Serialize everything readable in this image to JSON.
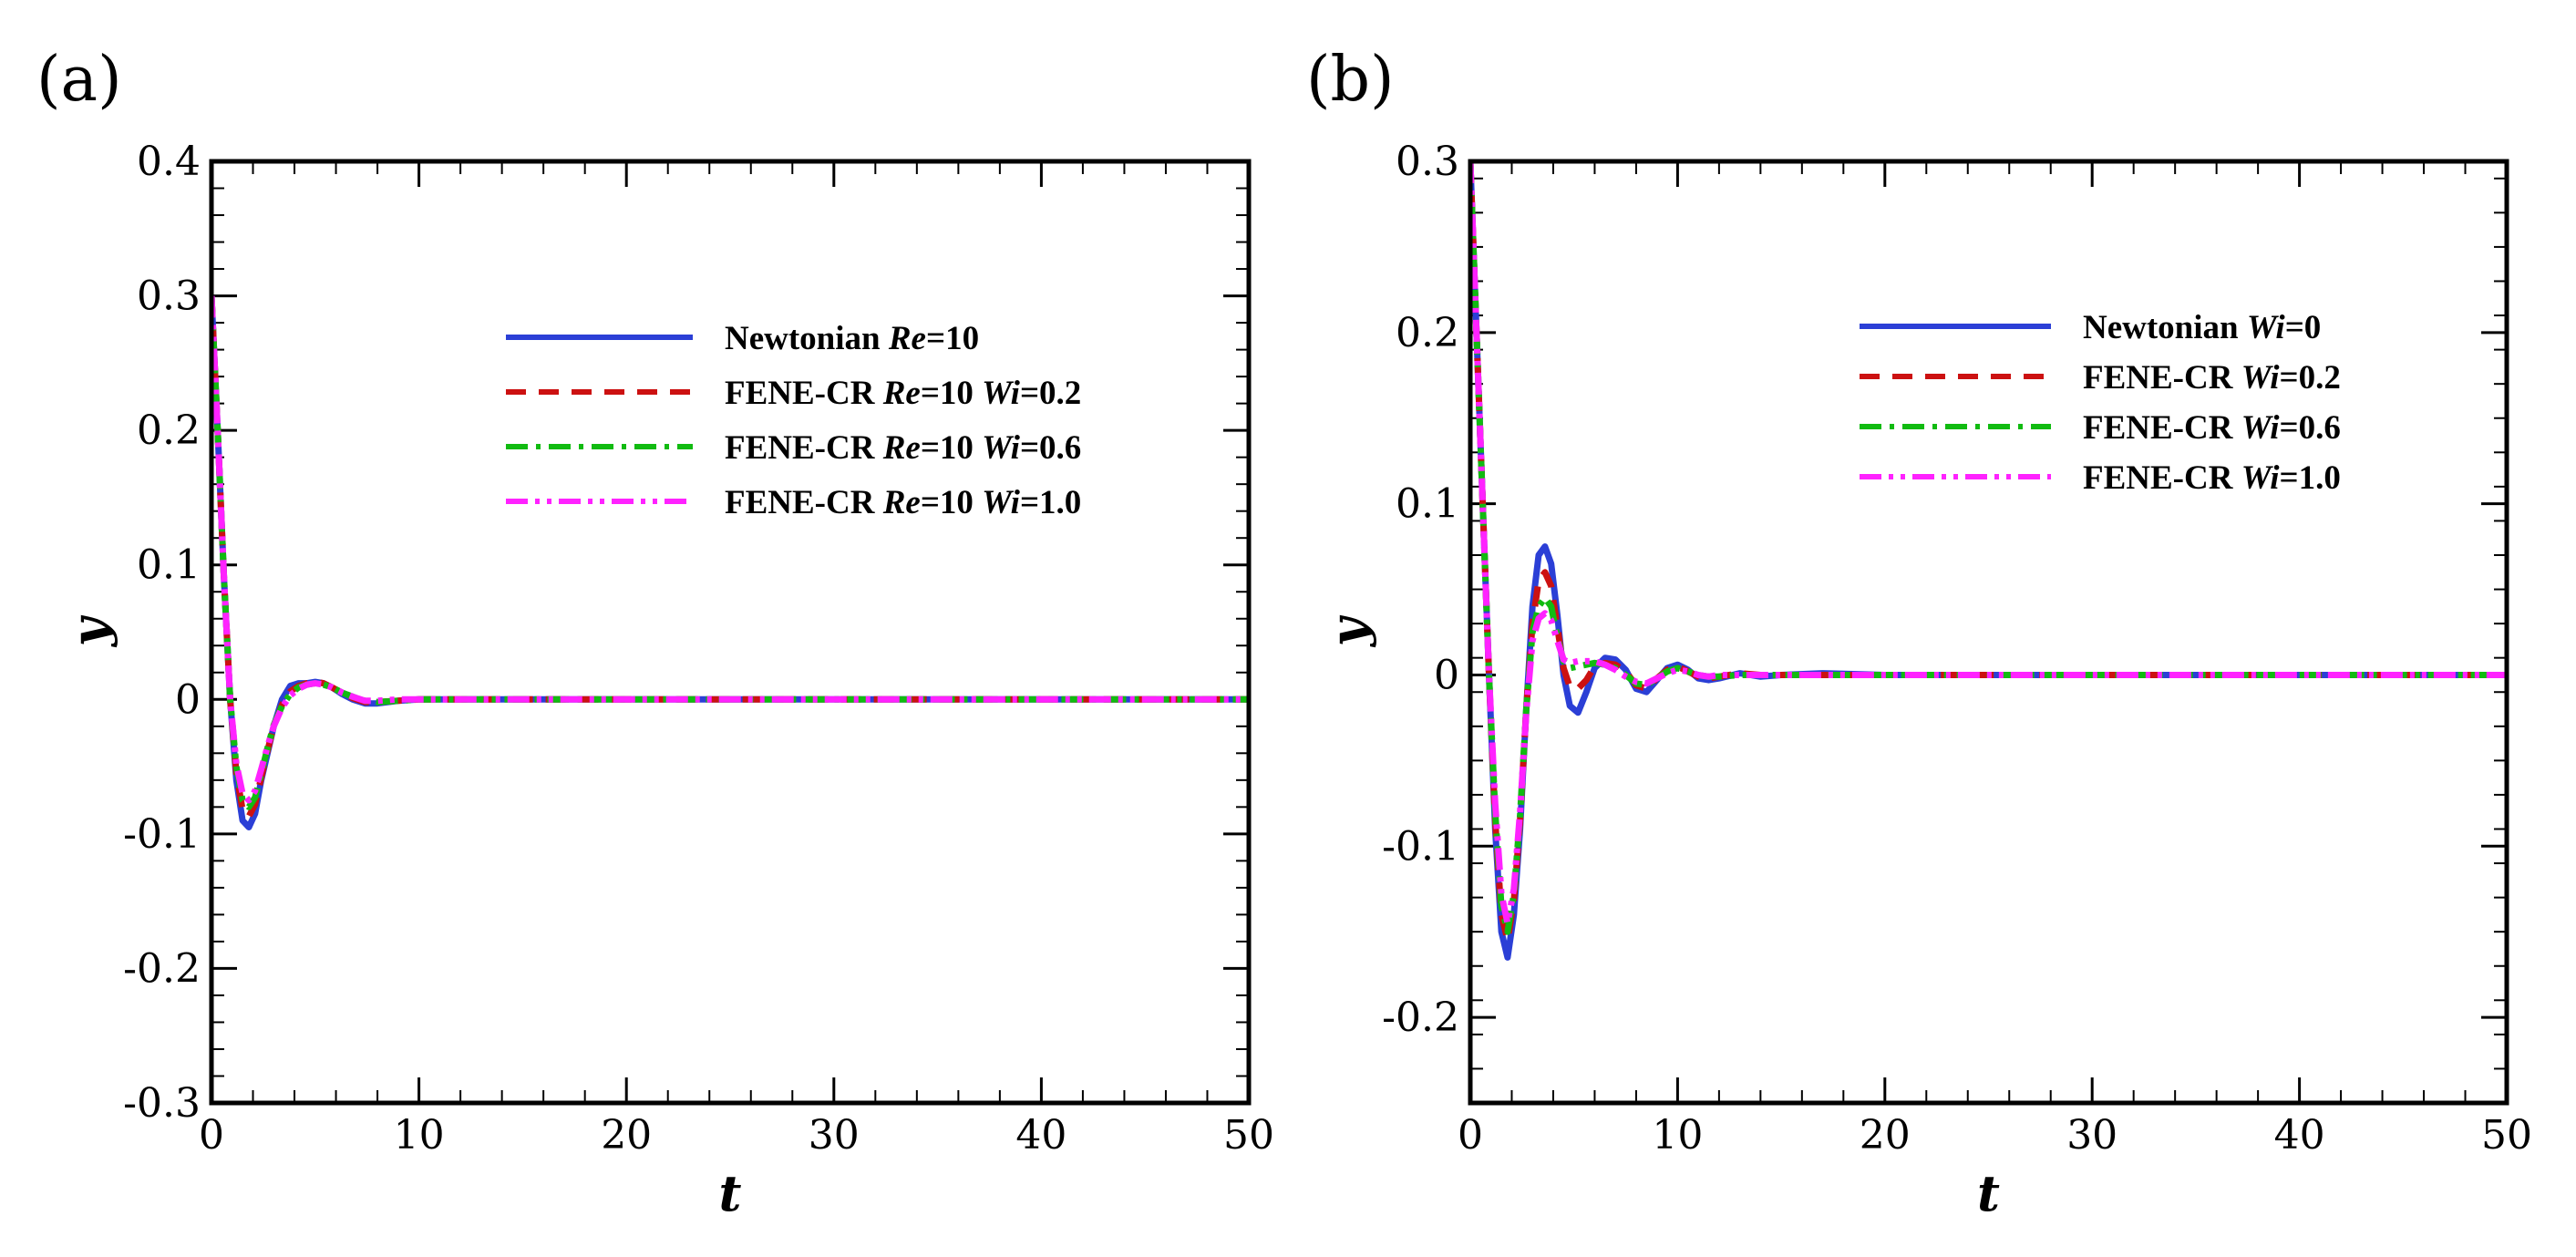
{
  "chart_data": [
    {
      "type": "line",
      "panel_label": "(a)",
      "title": "",
      "xlabel": "t",
      "ylabel": "y",
      "xlim": [
        0,
        50
      ],
      "ylim": [
        -0.3,
        0.4
      ],
      "xticks": [
        0,
        10,
        20,
        30,
        40,
        50
      ],
      "yticks": [
        -0.3,
        -0.2,
        -0.1,
        0,
        0.1,
        0.2,
        0.3,
        0.4
      ],
      "xtick_labels": [
        "0",
        "10",
        "20",
        "30",
        "40",
        "50"
      ],
      "ytick_labels": [
        "-0.3",
        "-0.2",
        "-0.1",
        "0",
        "0.1",
        "0.2",
        "0.3",
        "0.4"
      ],
      "legend_position": "upper-right",
      "series": [
        {
          "name": "Newtonian Re=10",
          "legend": [
            {
              "t": "Newtonian "
            },
            {
              "t": "Re",
              "i": true
            },
            {
              "t": "=10"
            }
          ],
          "color": "#2b3fd6",
          "dash": "solid",
          "x": [
            0,
            0.3,
            0.6,
            0.9,
            1.2,
            1.5,
            1.8,
            2.1,
            2.4,
            2.7,
            3.0,
            3.4,
            3.8,
            4.2,
            4.6,
            5.0,
            5.4,
            5.8,
            6.3,
            6.8,
            7.4,
            8.0,
            9.0,
            10.0,
            12.0,
            15.0,
            20.0,
            30.0,
            40.0,
            50.0
          ],
          "y": [
            0.3,
            0.2,
            0.09,
            0.0,
            -0.06,
            -0.09,
            -0.095,
            -0.085,
            -0.06,
            -0.04,
            -0.02,
            0.0,
            0.01,
            0.012,
            0.012,
            0.013,
            0.012,
            0.009,
            0.004,
            0.0,
            -0.003,
            -0.003,
            -0.001,
            0.0,
            0.0,
            0.0,
            0.0,
            0.0,
            0.0,
            0.0
          ]
        },
        {
          "name": "FENE-CR Re=10 Wi=0.2",
          "legend": [
            {
              "t": "FENE-CR "
            },
            {
              "t": "Re",
              "i": true
            },
            {
              "t": "=10 "
            },
            {
              "t": "Wi",
              "i": true
            },
            {
              "t": "=0.2"
            }
          ],
          "color": "#cc1111",
          "dash": "long-dash",
          "x": [
            0,
            0.3,
            0.6,
            0.9,
            1.2,
            1.5,
            1.8,
            2.1,
            2.4,
            2.7,
            3.0,
            3.4,
            3.8,
            4.2,
            4.6,
            5.0,
            5.4,
            5.8,
            6.3,
            6.8,
            7.4,
            8.0,
            9.0,
            10.0,
            12.0,
            15.0,
            20.0,
            30.0,
            40.0,
            50.0
          ],
          "y": [
            0.3,
            0.2,
            0.09,
            0.0,
            -0.055,
            -0.082,
            -0.087,
            -0.078,
            -0.058,
            -0.038,
            -0.02,
            -0.004,
            0.006,
            0.01,
            0.012,
            0.013,
            0.012,
            0.009,
            0.005,
            0.001,
            -0.002,
            -0.002,
            -0.001,
            0.0,
            0.0,
            0.0,
            0.0,
            0.0,
            0.0,
            0.0
          ]
        },
        {
          "name": "FENE-CR Re=10 Wi=0.6",
          "legend": [
            {
              "t": "FENE-CR "
            },
            {
              "t": "Re",
              "i": true
            },
            {
              "t": "=10 "
            },
            {
              "t": "Wi",
              "i": true
            },
            {
              "t": "=0.6"
            }
          ],
          "color": "#11bb11",
          "dash": "dash-dot",
          "x": [
            0,
            0.3,
            0.6,
            0.9,
            1.2,
            1.5,
            1.8,
            2.1,
            2.4,
            2.7,
            3.0,
            3.4,
            3.8,
            4.2,
            4.6,
            5.0,
            5.4,
            5.8,
            6.3,
            6.8,
            7.4,
            8.0,
            9.0,
            10.0,
            12.0,
            15.0,
            20.0,
            30.0,
            40.0,
            50.0
          ],
          "y": [
            0.3,
            0.2,
            0.09,
            0.0,
            -0.05,
            -0.075,
            -0.08,
            -0.073,
            -0.055,
            -0.036,
            -0.019,
            -0.005,
            0.004,
            0.009,
            0.011,
            0.012,
            0.011,
            0.009,
            0.005,
            0.002,
            -0.001,
            -0.002,
            -0.001,
            0.0,
            0.0,
            0.0,
            0.0,
            0.0,
            0.0,
            0.0
          ]
        },
        {
          "name": "FENE-CR Re=10 Wi=1.0",
          "legend": [
            {
              "t": "FENE-CR "
            },
            {
              "t": "Re",
              "i": true
            },
            {
              "t": "=10 "
            },
            {
              "t": "Wi",
              "i": true
            },
            {
              "t": "=1.0"
            }
          ],
          "color": "#ff22ff",
          "dash": "dash-dot-dot",
          "x": [
            0,
            0.3,
            0.6,
            0.9,
            1.2,
            1.5,
            1.8,
            2.1,
            2.4,
            2.7,
            3.0,
            3.4,
            3.8,
            4.2,
            4.6,
            5.0,
            5.4,
            5.8,
            6.3,
            6.8,
            7.4,
            8.0,
            9.0,
            10.0,
            12.0,
            15.0,
            20.0,
            30.0,
            40.0,
            50.0
          ],
          "y": [
            0.3,
            0.2,
            0.09,
            0.0,
            -0.048,
            -0.07,
            -0.075,
            -0.068,
            -0.052,
            -0.035,
            -0.02,
            -0.006,
            0.003,
            0.008,
            0.011,
            0.012,
            0.011,
            0.009,
            0.005,
            0.002,
            -0.001,
            -0.001,
            0.0,
            0.0,
            0.0,
            0.0,
            0.0,
            0.0,
            0.0,
            0.0
          ]
        }
      ]
    },
    {
      "type": "line",
      "panel_label": "(b)",
      "title": "",
      "xlabel": "t",
      "ylabel": "y",
      "xlim": [
        0,
        50
      ],
      "ylim": [
        -0.25,
        0.3
      ],
      "xticks": [
        0,
        10,
        20,
        30,
        40,
        50
      ],
      "yticks": [
        -0.2,
        -0.1,
        0,
        0.1,
        0.2,
        0.3
      ],
      "xtick_labels": [
        "0",
        "10",
        "20",
        "30",
        "40",
        "50"
      ],
      "ytick_labels": [
        "-0.2",
        "-0.1",
        "0",
        "0.1",
        "0.2",
        "0.3"
      ],
      "legend_position": "upper-right",
      "series": [
        {
          "name": "Newtonian Wi=0",
          "legend": [
            {
              "t": "Newtonian "
            },
            {
              "t": "Wi",
              "i": true
            },
            {
              "t": "=0"
            }
          ],
          "color": "#2b3fd6",
          "dash": "solid",
          "x": [
            0,
            0.3,
            0.6,
            0.9,
            1.2,
            1.5,
            1.8,
            2.1,
            2.4,
            2.7,
            3.0,
            3.3,
            3.6,
            3.9,
            4.2,
            4.5,
            4.8,
            5.2,
            5.6,
            6.0,
            6.5,
            7.0,
            7.5,
            8.0,
            8.5,
            9.0,
            9.5,
            10.0,
            10.5,
            11.0,
            11.5,
            12.0,
            13.0,
            14.0,
            15.0,
            17.0,
            20.0,
            30.0,
            40.0,
            50.0
          ],
          "y": [
            0.3,
            0.2,
            0.1,
            0.0,
            -0.09,
            -0.15,
            -0.165,
            -0.14,
            -0.09,
            -0.02,
            0.04,
            0.07,
            0.075,
            0.065,
            0.035,
            0.0,
            -0.018,
            -0.022,
            -0.01,
            0.004,
            0.01,
            0.009,
            0.003,
            -0.008,
            -0.01,
            -0.003,
            0.004,
            0.006,
            0.003,
            -0.002,
            -0.003,
            -0.002,
            0.001,
            -0.001,
            0.0,
            0.001,
            0.0,
            0.0,
            0.0,
            0.0
          ]
        },
        {
          "name": "FENE-CR Wi=0.2",
          "legend": [
            {
              "t": "FENE-CR "
            },
            {
              "t": "Wi",
              "i": true
            },
            {
              "t": "=0.2"
            }
          ],
          "color": "#cc1111",
          "dash": "long-dash",
          "x": [
            0,
            0.3,
            0.6,
            0.9,
            1.2,
            1.5,
            1.8,
            2.1,
            2.4,
            2.7,
            3.0,
            3.3,
            3.6,
            3.9,
            4.2,
            4.5,
            4.8,
            5.2,
            5.6,
            6.0,
            6.5,
            7.0,
            7.5,
            8.0,
            8.5,
            9.0,
            9.5,
            10.0,
            10.5,
            11.0,
            11.5,
            12.0,
            13.0,
            14.0,
            15.0,
            17.0,
            20.0,
            30.0,
            40.0,
            50.0
          ],
          "y": [
            0.3,
            0.2,
            0.1,
            0.0,
            -0.085,
            -0.14,
            -0.155,
            -0.132,
            -0.085,
            -0.02,
            0.03,
            0.055,
            0.06,
            0.052,
            0.028,
            0.004,
            -0.007,
            -0.008,
            -0.003,
            0.005,
            0.007,
            0.006,
            0.002,
            -0.006,
            -0.008,
            -0.002,
            0.003,
            0.005,
            0.002,
            -0.001,
            -0.002,
            -0.001,
            0.001,
            0.0,
            0.0,
            0.0,
            0.0,
            0.0,
            0.0,
            0.0
          ]
        },
        {
          "name": "FENE-CR Wi=0.6",
          "legend": [
            {
              "t": "FENE-CR "
            },
            {
              "t": "Wi",
              "i": true
            },
            {
              "t": "=0.6"
            }
          ],
          "color": "#11bb11",
          "dash": "dash-dot",
          "x": [
            0,
            0.3,
            0.6,
            0.9,
            1.2,
            1.5,
            1.8,
            2.1,
            2.4,
            2.7,
            3.0,
            3.3,
            3.6,
            3.9,
            4.2,
            4.5,
            4.8,
            5.2,
            5.6,
            6.0,
            6.5,
            7.0,
            7.5,
            8.0,
            8.5,
            9.0,
            9.5,
            10.0,
            10.5,
            11.0,
            11.5,
            12.0,
            13.0,
            14.0,
            15.0,
            17.0,
            20.0,
            30.0,
            40.0,
            50.0
          ],
          "y": [
            0.3,
            0.2,
            0.1,
            0.0,
            -0.08,
            -0.135,
            -0.15,
            -0.128,
            -0.082,
            -0.02,
            0.025,
            0.04,
            0.045,
            0.04,
            0.022,
            0.008,
            0.004,
            0.005,
            0.006,
            0.007,
            0.006,
            0.004,
            0.0,
            -0.005,
            -0.006,
            -0.002,
            0.002,
            0.004,
            0.002,
            0.0,
            -0.001,
            -0.001,
            0.0,
            0.0,
            0.0,
            0.0,
            0.0,
            0.0,
            0.0,
            0.0
          ]
        },
        {
          "name": "FENE-CR Wi=1.0",
          "legend": [
            {
              "t": "FENE-CR "
            },
            {
              "t": "Wi",
              "i": true
            },
            {
              "t": "=1.0"
            }
          ],
          "color": "#ff22ff",
          "dash": "dash-dot-dot",
          "x": [
            0,
            0.3,
            0.6,
            0.9,
            1.2,
            1.5,
            1.8,
            2.1,
            2.4,
            2.7,
            3.0,
            3.3,
            3.6,
            3.9,
            4.2,
            4.5,
            4.8,
            5.2,
            5.6,
            6.0,
            6.5,
            7.0,
            7.5,
            8.0,
            8.5,
            9.0,
            9.5,
            10.0,
            10.5,
            11.0,
            11.5,
            12.0,
            13.0,
            14.0,
            15.0,
            17.0,
            20.0,
            30.0,
            40.0,
            50.0
          ],
          "y": [
            0.3,
            0.2,
            0.1,
            0.0,
            -0.075,
            -0.128,
            -0.145,
            -0.125,
            -0.08,
            -0.022,
            0.02,
            0.033,
            0.036,
            0.032,
            0.02,
            0.009,
            0.007,
            0.008,
            0.008,
            0.008,
            0.006,
            0.003,
            -0.001,
            -0.004,
            -0.005,
            -0.002,
            0.001,
            0.003,
            0.002,
            0.0,
            -0.001,
            0.0,
            0.0,
            0.0,
            0.0,
            0.0,
            0.0,
            0.0,
            0.0,
            0.0
          ]
        }
      ]
    }
  ]
}
